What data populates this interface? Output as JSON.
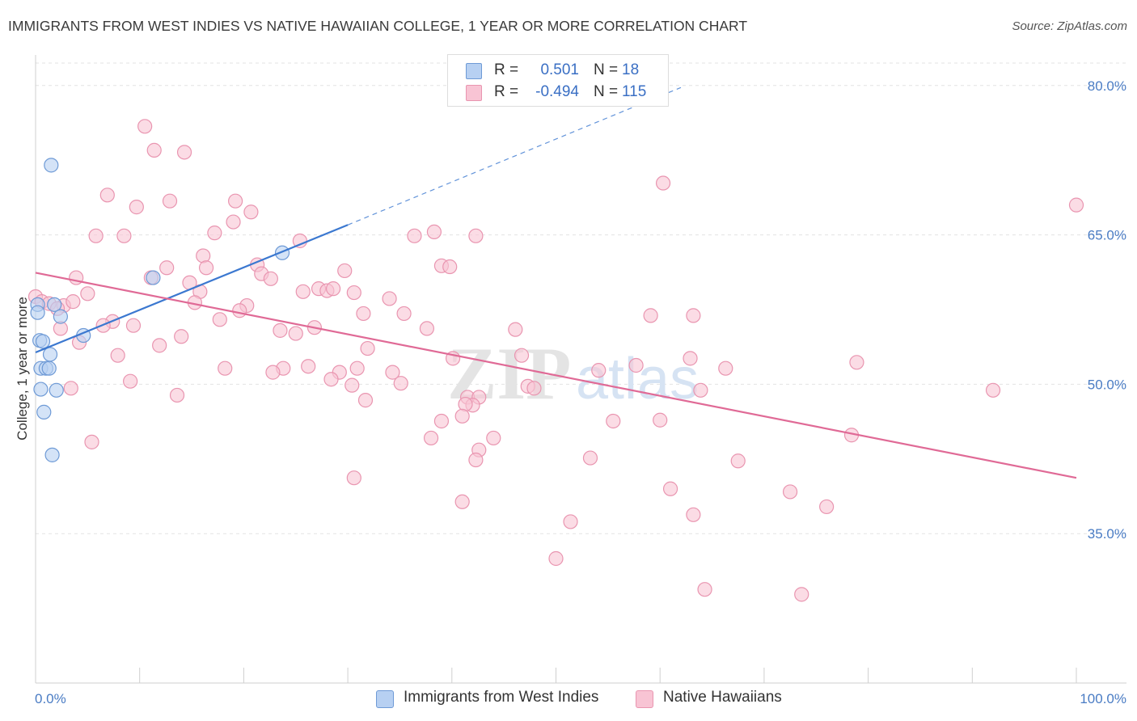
{
  "header": {
    "title": "IMMIGRANTS FROM WEST INDIES VS NATIVE HAWAIIAN COLLEGE, 1 YEAR OR MORE CORRELATION CHART",
    "source": "Source: ZipAtlas.com"
  },
  "legend": {
    "rows": [
      {
        "r_label": "R =",
        "r_value": "0.501",
        "n_label": "N =",
        "n_value": "18"
      },
      {
        "r_label": "R =",
        "r_value": "-0.494",
        "n_label": "N =",
        "n_value": "115"
      }
    ]
  },
  "bottom_legend": {
    "series": [
      "Immigrants from West Indies",
      "Native Hawaiians"
    ]
  },
  "watermark": {
    "zip": "ZIP",
    "atlas": "atlas"
  },
  "colors": {
    "blue_fill": "#b7d0f2",
    "blue_stroke": "#6e9ad6",
    "blue_line": "#3b78d0",
    "pink_fill": "#f8c4d4",
    "pink_stroke": "#e995b0",
    "pink_line": "#e06a96",
    "grid": "#e3e3e3",
    "tick_label": "#4a7cc4"
  },
  "chart_data": {
    "type": "scatter",
    "title": "IMMIGRANTS FROM WEST INDIES VS NATIVE HAWAIIAN COLLEGE, 1 YEAR OR MORE CORRELATION CHART",
    "xlabel": "",
    "ylabel": "College, 1 year or more",
    "xlim": [
      0,
      100
    ],
    "ylim": [
      20,
      82.5
    ],
    "x_tick_labels": [
      "0.0%",
      "100.0%"
    ],
    "y_ticks": [
      35,
      50,
      65,
      80
    ],
    "y_tick_labels": [
      "35.0%",
      "50.0%",
      "65.0%",
      "80.0%"
    ],
    "grid": true,
    "legend_position": "top-center",
    "series": [
      {
        "name": "Immigrants from West Indies",
        "r": 0.501,
        "n": 18,
        "trend": {
          "x0": 0,
          "y0": 53.2,
          "x1": 30,
          "y1": 66.0,
          "dashed_to_x": 62,
          "dashed_to_y": 79.8
        },
        "points": [
          {
            "x": 1.5,
            "y": 72.0
          },
          {
            "x": 0.2,
            "y": 58.0
          },
          {
            "x": 1.8,
            "y": 58.0
          },
          {
            "x": 0.2,
            "y": 57.2
          },
          {
            "x": 2.4,
            "y": 56.8
          },
          {
            "x": 0.4,
            "y": 54.4
          },
          {
            "x": 0.7,
            "y": 54.3
          },
          {
            "x": 4.6,
            "y": 54.9
          },
          {
            "x": 1.4,
            "y": 53.0
          },
          {
            "x": 0.5,
            "y": 51.6
          },
          {
            "x": 1.0,
            "y": 51.6
          },
          {
            "x": 1.3,
            "y": 51.6
          },
          {
            "x": 0.5,
            "y": 49.5
          },
          {
            "x": 2.0,
            "y": 49.4
          },
          {
            "x": 0.8,
            "y": 47.2
          },
          {
            "x": 1.6,
            "y": 42.9
          },
          {
            "x": 11.3,
            "y": 60.7
          },
          {
            "x": 23.7,
            "y": 63.2
          }
        ]
      },
      {
        "name": "Native Hawaiians",
        "r": -0.494,
        "n": 115,
        "trend": {
          "x0": 0,
          "y0": 61.2,
          "x1": 100,
          "y1": 40.6
        },
        "points": [
          {
            "x": 10.5,
            "y": 75.9
          },
          {
            "x": 11.4,
            "y": 73.5
          },
          {
            "x": 14.3,
            "y": 73.3
          },
          {
            "x": 6.9,
            "y": 69.0
          },
          {
            "x": 9.7,
            "y": 67.8
          },
          {
            "x": 12.9,
            "y": 68.4
          },
          {
            "x": 19.2,
            "y": 68.4
          },
          {
            "x": 20.7,
            "y": 67.3
          },
          {
            "x": 19.0,
            "y": 66.3
          },
          {
            "x": 5.8,
            "y": 64.9
          },
          {
            "x": 8.5,
            "y": 64.9
          },
          {
            "x": 17.2,
            "y": 65.2
          },
          {
            "x": 25.4,
            "y": 64.4
          },
          {
            "x": 36.4,
            "y": 64.9
          },
          {
            "x": 38.3,
            "y": 65.3
          },
          {
            "x": 42.3,
            "y": 64.9
          },
          {
            "x": 60.3,
            "y": 70.2
          },
          {
            "x": 100.0,
            "y": 68.0
          },
          {
            "x": 16.1,
            "y": 62.9
          },
          {
            "x": 16.4,
            "y": 61.7
          },
          {
            "x": 21.3,
            "y": 62.0
          },
          {
            "x": 21.7,
            "y": 61.1
          },
          {
            "x": 12.6,
            "y": 61.7
          },
          {
            "x": 11.1,
            "y": 60.7
          },
          {
            "x": 22.6,
            "y": 60.6
          },
          {
            "x": 29.7,
            "y": 61.4
          },
          {
            "x": 39.0,
            "y": 61.9
          },
          {
            "x": 39.8,
            "y": 61.8
          },
          {
            "x": 3.9,
            "y": 60.7
          },
          {
            "x": 14.8,
            "y": 60.2
          },
          {
            "x": 15.8,
            "y": 59.3
          },
          {
            "x": 5.0,
            "y": 59.1
          },
          {
            "x": 25.7,
            "y": 59.3
          },
          {
            "x": 27.2,
            "y": 59.6
          },
          {
            "x": 28.0,
            "y": 59.4
          },
          {
            "x": 28.6,
            "y": 59.6
          },
          {
            "x": 30.6,
            "y": 59.2
          },
          {
            "x": 34.0,
            "y": 58.6
          },
          {
            "x": 0.0,
            "y": 58.8
          },
          {
            "x": 0.6,
            "y": 58.3
          },
          {
            "x": 1.3,
            "y": 58.1
          },
          {
            "x": 2.7,
            "y": 57.9
          },
          {
            "x": 2.1,
            "y": 57.6
          },
          {
            "x": 3.6,
            "y": 58.3
          },
          {
            "x": 15.3,
            "y": 58.2
          },
          {
            "x": 20.3,
            "y": 57.9
          },
          {
            "x": 19.6,
            "y": 57.4
          },
          {
            "x": 31.5,
            "y": 57.1
          },
          {
            "x": 35.4,
            "y": 57.1
          },
          {
            "x": 59.1,
            "y": 56.9
          },
          {
            "x": 63.2,
            "y": 56.9
          },
          {
            "x": 17.7,
            "y": 56.5
          },
          {
            "x": 7.4,
            "y": 56.3
          },
          {
            "x": 6.5,
            "y": 55.9
          },
          {
            "x": 9.4,
            "y": 55.9
          },
          {
            "x": 2.4,
            "y": 55.6
          },
          {
            "x": 26.8,
            "y": 55.7
          },
          {
            "x": 37.6,
            "y": 55.6
          },
          {
            "x": 46.1,
            "y": 55.5
          },
          {
            "x": 23.5,
            "y": 55.4
          },
          {
            "x": 25.0,
            "y": 55.1
          },
          {
            "x": 14.0,
            "y": 54.8
          },
          {
            "x": 4.2,
            "y": 54.2
          },
          {
            "x": 11.9,
            "y": 53.9
          },
          {
            "x": 31.9,
            "y": 53.6
          },
          {
            "x": 7.9,
            "y": 52.9
          },
          {
            "x": 40.1,
            "y": 52.6
          },
          {
            "x": 46.7,
            "y": 52.9
          },
          {
            "x": 62.9,
            "y": 52.6
          },
          {
            "x": 18.2,
            "y": 51.6
          },
          {
            "x": 23.8,
            "y": 51.6
          },
          {
            "x": 26.2,
            "y": 51.8
          },
          {
            "x": 29.2,
            "y": 51.2
          },
          {
            "x": 30.9,
            "y": 51.6
          },
          {
            "x": 34.3,
            "y": 51.2
          },
          {
            "x": 54.1,
            "y": 51.4
          },
          {
            "x": 57.7,
            "y": 51.9
          },
          {
            "x": 66.3,
            "y": 51.6
          },
          {
            "x": 78.9,
            "y": 52.2
          },
          {
            "x": 22.8,
            "y": 51.2
          },
          {
            "x": 28.4,
            "y": 50.5
          },
          {
            "x": 9.1,
            "y": 50.3
          },
          {
            "x": 3.4,
            "y": 49.6
          },
          {
            "x": 30.4,
            "y": 49.9
          },
          {
            "x": 35.1,
            "y": 50.1
          },
          {
            "x": 47.3,
            "y": 49.8
          },
          {
            "x": 47.9,
            "y": 49.6
          },
          {
            "x": 63.9,
            "y": 49.4
          },
          {
            "x": 92.0,
            "y": 49.4
          },
          {
            "x": 13.6,
            "y": 48.9
          },
          {
            "x": 41.5,
            "y": 48.7
          },
          {
            "x": 42.6,
            "y": 48.7
          },
          {
            "x": 31.7,
            "y": 48.4
          },
          {
            "x": 42.0,
            "y": 47.9
          },
          {
            "x": 41.3,
            "y": 48.0
          },
          {
            "x": 41.0,
            "y": 46.8
          },
          {
            "x": 39.0,
            "y": 46.3
          },
          {
            "x": 55.5,
            "y": 46.3
          },
          {
            "x": 60.0,
            "y": 46.4
          },
          {
            "x": 5.4,
            "y": 44.2
          },
          {
            "x": 38.0,
            "y": 44.6
          },
          {
            "x": 44.0,
            "y": 44.6
          },
          {
            "x": 78.4,
            "y": 44.9
          },
          {
            "x": 42.6,
            "y": 43.4
          },
          {
            "x": 53.3,
            "y": 42.6
          },
          {
            "x": 42.3,
            "y": 42.4
          },
          {
            "x": 67.5,
            "y": 42.3
          },
          {
            "x": 30.6,
            "y": 40.6
          },
          {
            "x": 61.0,
            "y": 39.5
          },
          {
            "x": 72.5,
            "y": 39.2
          },
          {
            "x": 41.0,
            "y": 38.2
          },
          {
            "x": 76.0,
            "y": 37.7
          },
          {
            "x": 63.2,
            "y": 36.9
          },
          {
            "x": 51.4,
            "y": 36.2
          },
          {
            "x": 50.0,
            "y": 32.5
          },
          {
            "x": 64.3,
            "y": 29.4
          },
          {
            "x": 73.6,
            "y": 28.9
          }
        ]
      }
    ]
  }
}
